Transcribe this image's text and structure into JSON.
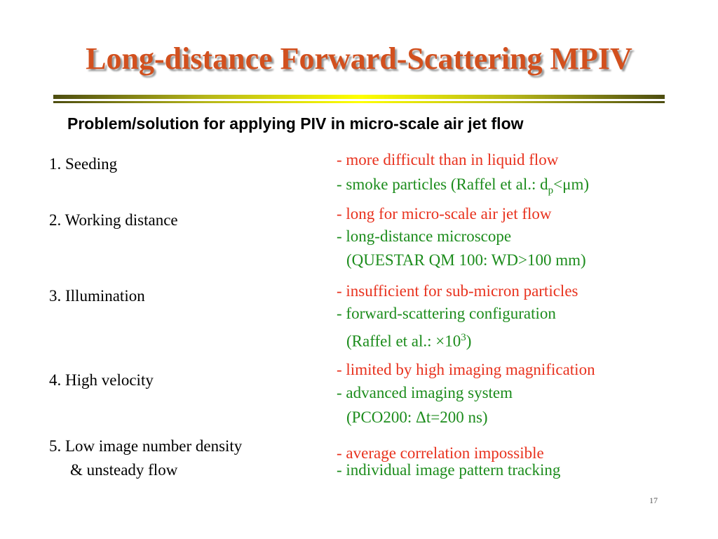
{
  "slide": {
    "title": "Long-distance Forward-Scattering MPIV",
    "subtitle": "Problem/solution for applying PIV in micro-scale air jet flow",
    "page_number": "17",
    "colors": {
      "title": "#d2501e",
      "problem": "#e8321e",
      "solution": "#1c8c1c"
    }
  },
  "items": [
    {
      "label": "1. Seeding",
      "problem": "- more difficult than in liquid flow",
      "solution_prefix": "- smoke particles (Raffel et al.: d",
      "solution_sub": "p",
      "solution_suffix": "<μm)"
    },
    {
      "label": "2. Working distance",
      "problem": "- long for micro-scale air jet flow",
      "solution": "- long-distance microscope",
      "solution_detail": "(QUESTAR QM 100: WD>100 mm)"
    },
    {
      "label": "3. Illumination",
      "problem": "- insufficient for sub-micron particles",
      "solution": "- forward-scattering configuration",
      "detail_prefix": "(Raffel et al.: ×10",
      "detail_sup": "3",
      "detail_suffix": ")"
    },
    {
      "label": "4. High velocity",
      "problem": "- limited by high imaging magnification",
      "solution": "- advanced imaging system",
      "solution_detail": "(PCO200: Δt=200 ns)"
    },
    {
      "label_line1": "5. Low image number density",
      "label_line2": "& unsteady flow",
      "problem": "- average correlation impossible",
      "solution": "- individual image pattern tracking"
    }
  ]
}
